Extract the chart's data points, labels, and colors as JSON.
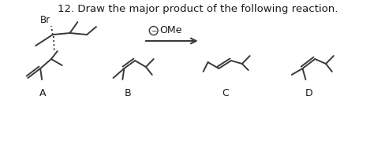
{
  "title": "12. Draw the major product of the following reaction.",
  "title_fontsize": 9.5,
  "bg_color": "#ffffff",
  "line_color": "#3a3a3a",
  "text_color": "#1a1a1a",
  "label_A": "A",
  "label_B": "B",
  "label_C": "C",
  "label_D": "D",
  "reagent_text": "OMe",
  "line_width": 1.4
}
